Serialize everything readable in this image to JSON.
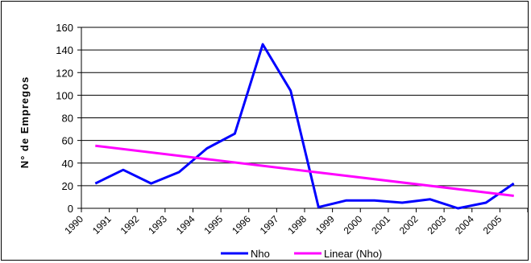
{
  "chart_data": {
    "type": "line",
    "title": "",
    "xlabel": "",
    "ylabel": "N° de Empregos",
    "ylim": [
      0,
      160
    ],
    "yticks": [
      "0",
      "20",
      "40",
      "60",
      "80",
      "100",
      "120",
      "140",
      "160"
    ],
    "xtick_labels": [
      "1990",
      "1991",
      "1992",
      "1993",
      "1994",
      "1995",
      "1996",
      "1997",
      "1998",
      "1999",
      "2000",
      "2001",
      "2002",
      "2003",
      "2004",
      "2005"
    ],
    "x": [
      1990,
      1991,
      1992,
      1993,
      1994,
      1995,
      1996,
      1997,
      1998,
      1999,
      2000,
      2001,
      2002,
      2003,
      2004,
      2005
    ],
    "grid": true,
    "legend_position": "bottom",
    "series": [
      {
        "name": "Nho",
        "color": "#0000ff",
        "values": [
          22,
          34,
          22,
          32,
          53,
          66,
          145,
          104,
          1,
          7,
          7,
          5,
          8,
          0,
          5,
          22
        ]
      },
      {
        "name": "Linear (Nho)",
        "color": "#ff00ff",
        "values": [
          55.3,
          52.4,
          49.5,
          46.6,
          43.7,
          40.8,
          37.9,
          35.0,
          32.1,
          29.2,
          26.3,
          23.4,
          20.5,
          17.6,
          14.7,
          11.0
        ]
      }
    ]
  }
}
